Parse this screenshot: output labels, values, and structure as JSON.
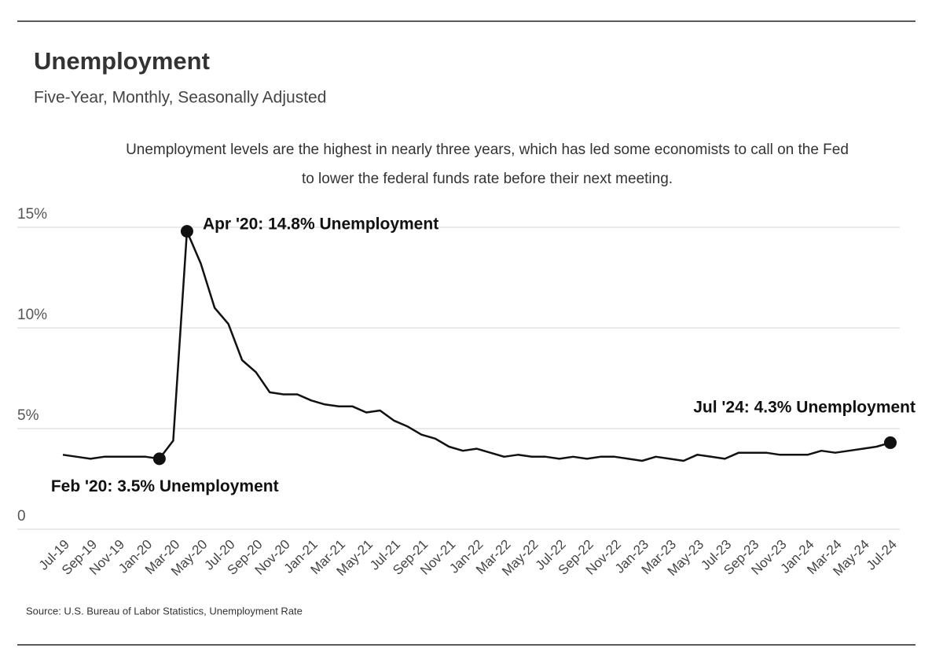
{
  "chart_data": {
    "type": "line",
    "title": "Unemployment",
    "subtitle": "Five-Year, Monthly, Seasonally Adjusted",
    "note": "Unemployment levels are the highest in nearly three years, which has led some economists to call on the Fed to lower the federal funds rate before their next meeting.",
    "source": "Source:  U.S. Bureau of Labor Statistics, Unemployment Rate",
    "annotations": [
      "Feb '20: 3.5% Unemployment",
      "Apr '20: 14.8% Unemployment",
      "Jul '24: 4.3% Unemployment"
    ],
    "categories": [
      "Jul-19",
      null,
      "Sep-19",
      null,
      "Nov-19",
      null,
      "Jan-20",
      null,
      "Mar-20",
      null,
      "May-20",
      null,
      "Jul-20",
      null,
      "Sep-20",
      null,
      "Nov-20",
      null,
      "Jan-21",
      null,
      "Mar-21",
      null,
      "May-21",
      null,
      "Jul-21",
      null,
      "Sep-21",
      null,
      "Nov-21",
      null,
      "Jan-22",
      null,
      "Mar-22",
      null,
      "May-22",
      null,
      "Jul-22",
      null,
      "Sep-22",
      null,
      "Nov-22",
      null,
      "Jan-23",
      null,
      "Mar-23",
      null,
      "May-23",
      null,
      "Jul-23",
      null,
      "Sep-23",
      null,
      "Nov-23",
      null,
      "Jan-24",
      null,
      "Mar-24",
      null,
      "May-24",
      null,
      "Jul-24"
    ],
    "values": [
      3.7,
      3.6,
      3.5,
      3.6,
      3.6,
      3.6,
      3.6,
      3.5,
      4.4,
      14.8,
      13.2,
      11.0,
      10.2,
      8.4,
      7.8,
      6.8,
      6.7,
      6.7,
      6.4,
      6.2,
      6.1,
      6.1,
      5.8,
      5.9,
      5.4,
      5.1,
      4.7,
      4.5,
      4.1,
      3.9,
      4.0,
      3.8,
      3.6,
      3.7,
      3.6,
      3.6,
      3.5,
      3.6,
      3.5,
      3.6,
      3.6,
      3.5,
      3.4,
      3.6,
      3.5,
      3.4,
      3.7,
      3.6,
      3.5,
      3.8,
      3.8,
      3.8,
      3.7,
      3.7,
      3.7,
      3.9,
      3.8,
      3.9,
      4.0,
      4.1,
      4.3
    ],
    "color": "#111111",
    "ylim": [
      0,
      15
    ],
    "yticks": [
      0,
      {
        "value": 5,
        "label": "5%"
      },
      {
        "value": 10,
        "label": "10%"
      },
      {
        "value": 15,
        "label": "15%"
      }
    ],
    "grid": true
  }
}
